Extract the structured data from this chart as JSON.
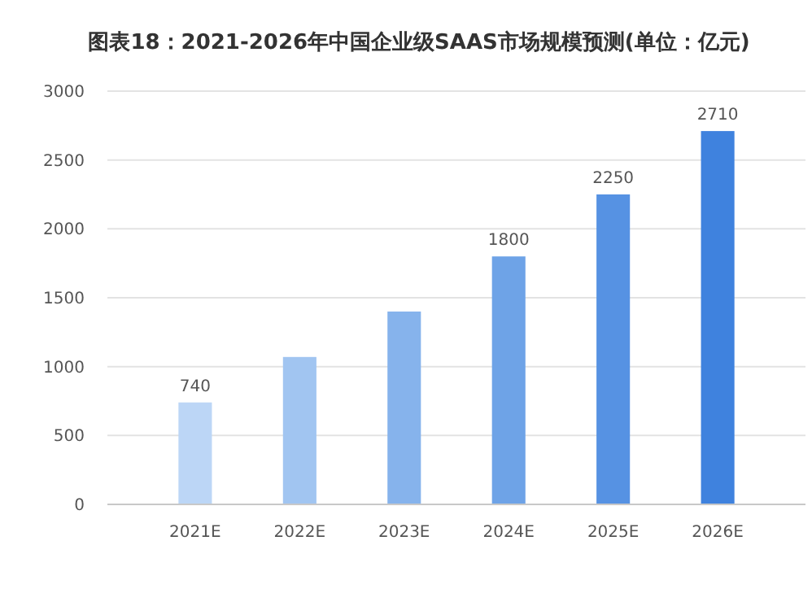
{
  "chart_data": {
    "type": "bar",
    "title": "图表18：2021-2026年中国企业级SAAS市场规模预测(单位：亿元)",
    "categories": [
      "2021E",
      "2022E",
      "2023E",
      "2024E",
      "2025E",
      "2026E"
    ],
    "values": [
      740,
      1070,
      1400,
      1800,
      2250,
      2710
    ],
    "value_labels": [
      "740",
      null,
      null,
      "1800",
      "2250",
      "2710"
    ],
    "colors": [
      "#bcd6f6",
      "#a1c5f1",
      "#86b3ec",
      "#6ea3e7",
      "#5692e3",
      "#3f82de"
    ],
    "ylim": [
      0,
      3000
    ],
    "yticks": [
      0,
      500,
      1000,
      1500,
      2000,
      2500,
      3000
    ],
    "grid": "y"
  }
}
